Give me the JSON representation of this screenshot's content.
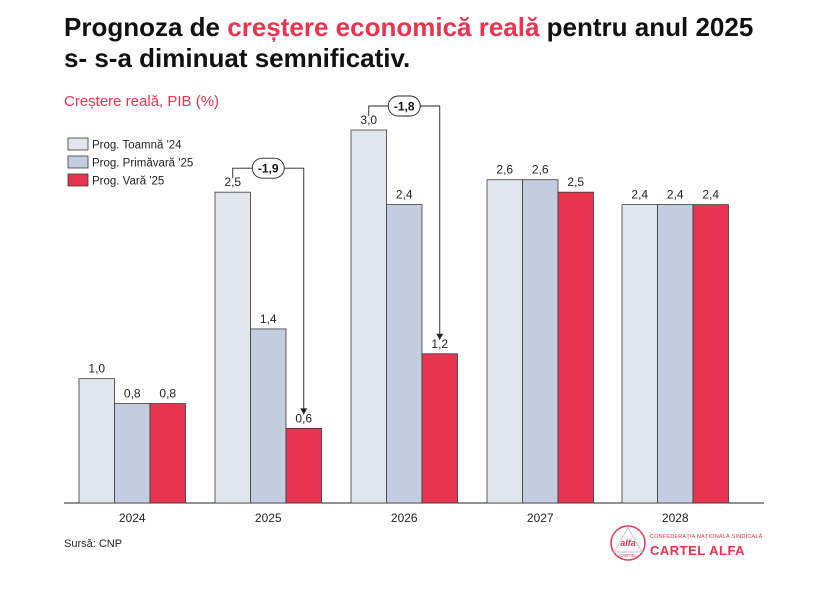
{
  "title": {
    "part1": "Prognoza de ",
    "highlight": "creștere economică reală",
    "part2": " pentru anul 2025 s- s-a diminuat semnificativ."
  },
  "subtitle": "Creștere reală, PIB (%)",
  "source": "Sursă: CNP",
  "logo": {
    "small_text": "CONFEDERAȚIA NAȚIONALĂ SINDICALĂ",
    "name": "CARTEL ALFA",
    "emblem_top": "alfa",
    "emblem_bottom": "CARTEL"
  },
  "chart_data": {
    "type": "bar",
    "categories": [
      "2024",
      "2025",
      "2026",
      "2027",
      "2028"
    ],
    "series": [
      {
        "name": "Prog. Toamnă '24",
        "color": "#e1e6ee",
        "values": [
          1.0,
          2.5,
          3.0,
          2.6,
          2.4
        ],
        "labels": [
          "1,0",
          "2,5",
          "3,0",
          "2,6",
          "2,4"
        ]
      },
      {
        "name": "Prog. Primăvară '25",
        "color": "#c3cddf",
        "values": [
          0.8,
          1.4,
          2.4,
          2.6,
          2.4
        ],
        "labels": [
          "0,8",
          "1,4",
          "2,4",
          "2,6",
          "2,4"
        ]
      },
      {
        "name": "Prog. Vară '25",
        "color": "#e8344e",
        "values": [
          0.8,
          0.6,
          1.2,
          2.5,
          2.4
        ],
        "labels": [
          "0,8",
          "0,6",
          "1,2",
          "2,5",
          "2,4"
        ]
      }
    ],
    "ylim": [
      0,
      3.0
    ],
    "grid": false,
    "legend": "top-left",
    "annotations": [
      {
        "category": "2025",
        "from_series": 0,
        "to_series": 2,
        "label": "-1,9"
      },
      {
        "category": "2026",
        "from_series": 0,
        "to_series": 2,
        "label": "-1,8"
      }
    ]
  }
}
